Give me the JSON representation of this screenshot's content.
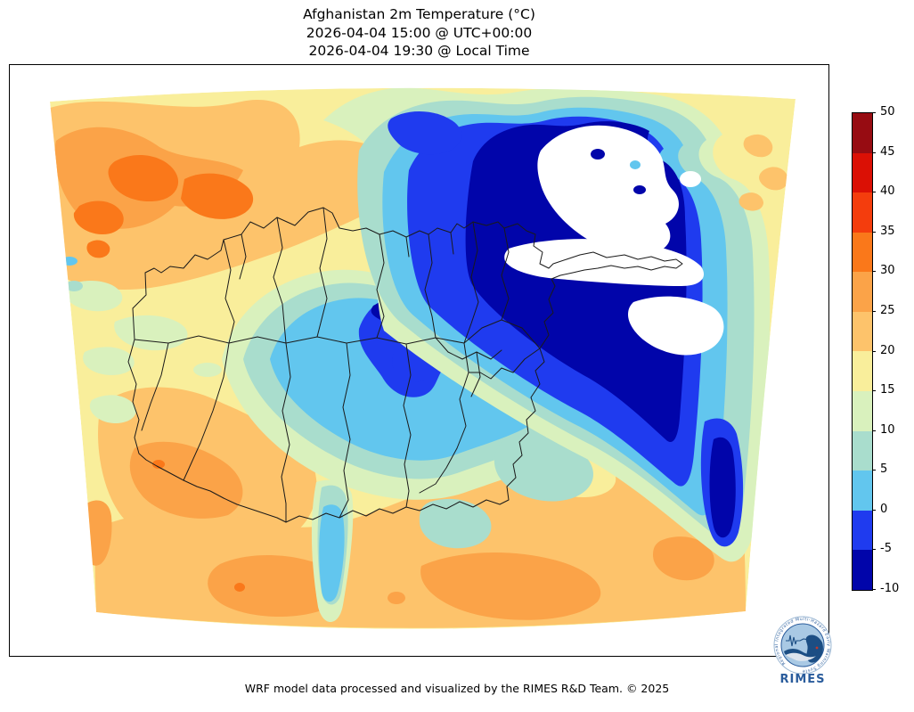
{
  "title": {
    "line1": "Afghanistan 2m Temperature (°C)",
    "line2": "2026-04-04 15:00 @ UTC+00:00",
    "line3": "2026-04-04 19:30 @ Local Time"
  },
  "footer": {
    "credit": "WRF model data processed and visualized by the RIMES R&D Team. © 2025"
  },
  "colorbar": {
    "unit": "°C",
    "min": -10,
    "max": 50,
    "step": 5,
    "tick_labels": [
      "50",
      "45",
      "40",
      "35",
      "30",
      "25",
      "20",
      "15",
      "10",
      "5",
      "0",
      "-5",
      "-10"
    ],
    "bands": [
      {
        "range": "-10 to -5",
        "color": "#0105aa"
      },
      {
        "range": "-5 to 0",
        "color": "#1f3bef"
      },
      {
        "range": "0 to 5",
        "color": "#62c6ee"
      },
      {
        "range": "5 to 10",
        "color": "#a9ddcd"
      },
      {
        "range": "10 to 15",
        "color": "#d9f1bd"
      },
      {
        "range": "15 to 20",
        "color": "#f9ee9b"
      },
      {
        "range": "20 to 25",
        "color": "#fdc36b"
      },
      {
        "range": "25 to 30",
        "color": "#fba348"
      },
      {
        "range": "30 to 35",
        "color": "#fa781a"
      },
      {
        "range": "35 to 40",
        "color": "#f43d0d"
      },
      {
        "range": "40 to 45",
        "color": "#db1005"
      },
      {
        "range": "45 to 50",
        "color": "#970c12"
      }
    ]
  },
  "map": {
    "description": "Filled 2m-temperature contours over Afghanistan and surroundings with province boundaries; white areas are below -10 °C",
    "boundary_color": "#1a1a1a",
    "below_range_color": "#ffffff"
  },
  "logo": {
    "name": "RIMES",
    "ring_text": "Regional Integrated Multi-Hazard Early Warning System",
    "primary_color": "#2a5c9c"
  }
}
